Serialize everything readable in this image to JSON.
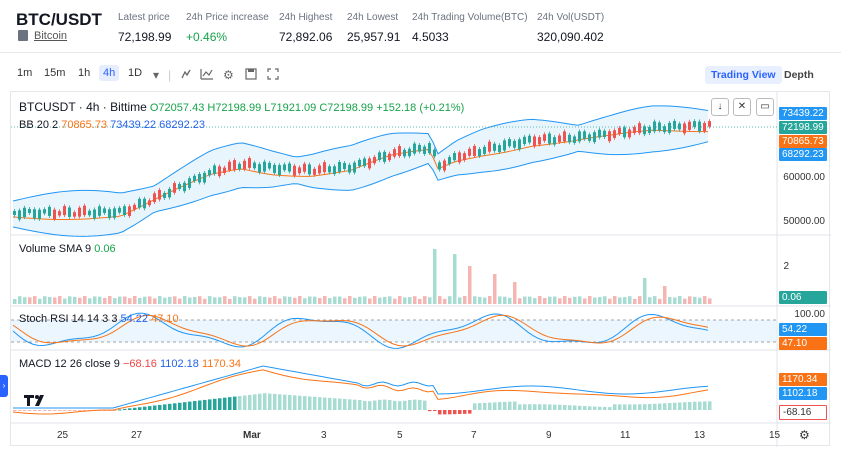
{
  "header": {
    "pair": "BTC/USDT",
    "subtitle": "Bitcoin",
    "stats": [
      {
        "label": "Latest price",
        "value": "72,198.99",
        "color": "default"
      },
      {
        "label": "24h Price increase",
        "value": "+0.46%",
        "color": "green"
      },
      {
        "label": "24h Highest",
        "value": "72,892.06",
        "color": "default"
      },
      {
        "label": "24h Lowest",
        "value": "25,957.91",
        "color": "default"
      },
      {
        "label": "24h Trading Volume(BTC)",
        "value": "4.5033",
        "color": "default"
      },
      {
        "label": "24h Vol(USDT)",
        "value": "320,090.402",
        "color": "default"
      }
    ]
  },
  "toolbar": {
    "timeframes": [
      "1m",
      "15m",
      "1h",
      "4h",
      "1D"
    ],
    "active_timeframe": "4h",
    "trading_view_label": "Trading View",
    "depth_label": "Depth"
  },
  "chart": {
    "symbol_line": "BTCUSDT · 4h · Bittime",
    "ohlc": {
      "o": "O72057.43",
      "h": "H72198.99",
      "l": "L71921.09",
      "c": "C72198.99",
      "chg": "+152.18 (+0.21%)"
    },
    "bb_label": "BB 20 2",
    "bb_values": [
      "70865.73",
      "73439.22",
      "68292.23"
    ],
    "volume_label": "Volume SMA 9",
    "volume_value": "0.06",
    "stoch_label": "Stoch RSI 14 14 3 3",
    "stoch_values": [
      "54.22",
      "47.10"
    ],
    "macd_label": "MACD 12 26 close 9",
    "macd_values": [
      "−68.16",
      "1102.18",
      "1170.34"
    ],
    "price_axis": [
      "73439.22",
      "72198.99",
      "70865.73",
      "68292.23",
      "60000.00",
      "50000.00"
    ],
    "volume_axis": [
      "2",
      "0.06"
    ],
    "stoch_axis": [
      "100.00",
      "54.22",
      "47.10"
    ],
    "macd_axis": [
      "1170.34",
      "1102.18",
      "-68.16"
    ],
    "x_labels": [
      "25",
      "27",
      "Mar",
      "3",
      "5",
      "7",
      "9",
      "11",
      "13",
      "15"
    ],
    "colors": {
      "up": "#26a69a",
      "down": "#ef5350",
      "bb_mid": "#f97316",
      "bb_band": "#2196f3",
      "fill": "#e3f2fd",
      "accent": "#2962ff"
    },
    "icons": [
      "chart-type-icon",
      "indicator-icon",
      "settings-icon",
      "screenshot-icon",
      "fullscreen-icon",
      "down-arrow-icon",
      "collapse-icon",
      "expand-icon",
      "settings-gear-icon"
    ]
  }
}
